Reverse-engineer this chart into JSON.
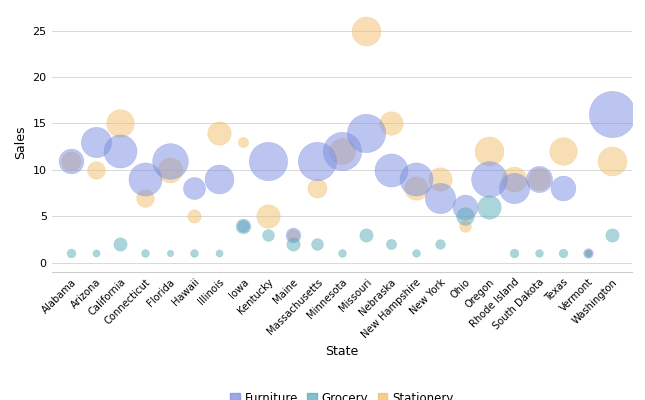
{
  "states": [
    "Alabama",
    "Arizona",
    "California",
    "Connecticut",
    "Florida",
    "Hawaii",
    "Illinois",
    "Iowa",
    "Kentucky",
    "Maine",
    "Massachusetts",
    "Minnesota",
    "Missouri",
    "Nebraska",
    "New Hampshire",
    "New York",
    "Ohio",
    "Oregon",
    "Rhode Island",
    "South Dakota",
    "Texas",
    "Vermont",
    "Washington"
  ],
  "categories": [
    "Furniture",
    "Grocery",
    "Stationery"
  ],
  "colors": {
    "Furniture": "#7b8de0",
    "Grocery": "#5aacb8",
    "Stationery": "#f0be6a"
  },
  "alpha": 0.5,
  "bubble_data": [
    {
      "state": "Alabama",
      "category": "Furniture",
      "sales": 11,
      "size": 80
    },
    {
      "state": "Alabama",
      "category": "Grocery",
      "sales": 1,
      "size": 25
    },
    {
      "state": "Alabama",
      "category": "Stationery",
      "sales": 11,
      "size": 60
    },
    {
      "state": "Arizona",
      "category": "Furniture",
      "sales": 13,
      "size": 100
    },
    {
      "state": "Arizona",
      "category": "Grocery",
      "sales": 1,
      "size": 20
    },
    {
      "state": "Arizona",
      "category": "Stationery",
      "sales": 10,
      "size": 55
    },
    {
      "state": "California",
      "category": "Furniture",
      "sales": 12,
      "size": 110
    },
    {
      "state": "California",
      "category": "Grocery",
      "sales": 2,
      "size": 40
    },
    {
      "state": "California",
      "category": "Stationery",
      "sales": 15,
      "size": 90
    },
    {
      "state": "Connecticut",
      "category": "Furniture",
      "sales": 9,
      "size": 110
    },
    {
      "state": "Connecticut",
      "category": "Grocery",
      "sales": 1,
      "size": 22
    },
    {
      "state": "Connecticut",
      "category": "Stationery",
      "sales": 7,
      "size": 55
    },
    {
      "state": "Florida",
      "category": "Furniture",
      "sales": 11,
      "size": 120
    },
    {
      "state": "Florida",
      "category": "Grocery",
      "sales": 1,
      "size": 18
    },
    {
      "state": "Florida",
      "category": "Stationery",
      "sales": 10,
      "size": 80
    },
    {
      "state": "Hawaii",
      "category": "Furniture",
      "sales": 8,
      "size": 70
    },
    {
      "state": "Hawaii",
      "category": "Grocery",
      "sales": 1,
      "size": 22
    },
    {
      "state": "Hawaii",
      "category": "Stationery",
      "sales": 5,
      "size": 40
    },
    {
      "state": "Illinois",
      "category": "Furniture",
      "sales": 9,
      "size": 95
    },
    {
      "state": "Illinois",
      "category": "Grocery",
      "sales": 1,
      "size": 20
    },
    {
      "state": "Illinois",
      "category": "Stationery",
      "sales": 14,
      "size": 75
    },
    {
      "state": "Iowa",
      "category": "Furniture",
      "sales": 4,
      "size": 35
    },
    {
      "state": "Iowa",
      "category": "Grocery",
      "sales": 4,
      "size": 45
    },
    {
      "state": "Iowa",
      "category": "Stationery",
      "sales": 13,
      "size": 30
    },
    {
      "state": "Kentucky",
      "category": "Furniture",
      "sales": 11,
      "size": 130
    },
    {
      "state": "Kentucky",
      "category": "Grocery",
      "sales": 3,
      "size": 35
    },
    {
      "state": "Kentucky",
      "category": "Stationery",
      "sales": 5,
      "size": 75
    },
    {
      "state": "Maine",
      "category": "Furniture",
      "sales": 3,
      "size": 45
    },
    {
      "state": "Maine",
      "category": "Grocery",
      "sales": 2,
      "size": 40
    },
    {
      "state": "Maine",
      "category": "Stationery",
      "sales": 3,
      "size": 35
    },
    {
      "state": "Massachusetts",
      "category": "Furniture",
      "sales": 11,
      "size": 130
    },
    {
      "state": "Massachusetts",
      "category": "Grocery",
      "sales": 2,
      "size": 35
    },
    {
      "state": "Massachusetts",
      "category": "Stationery",
      "sales": 8,
      "size": 60
    },
    {
      "state": "Minnesota",
      "category": "Furniture",
      "sales": 12,
      "size": 130
    },
    {
      "state": "Minnesota",
      "category": "Grocery",
      "sales": 1,
      "size": 22
    },
    {
      "state": "Minnesota",
      "category": "Stationery",
      "sales": 12,
      "size": 85
    },
    {
      "state": "Missouri",
      "category": "Furniture",
      "sales": 14,
      "size": 130
    },
    {
      "state": "Missouri",
      "category": "Grocery",
      "sales": 3,
      "size": 40
    },
    {
      "state": "Missouri",
      "category": "Stationery",
      "sales": 25,
      "size": 95
    },
    {
      "state": "Nebraska",
      "category": "Furniture",
      "sales": 10,
      "size": 110
    },
    {
      "state": "Nebraska",
      "category": "Grocery",
      "sales": 2,
      "size": 30
    },
    {
      "state": "Nebraska",
      "category": "Stationery",
      "sales": 15,
      "size": 75
    },
    {
      "state": "New Hampshire",
      "category": "Furniture",
      "sales": 9,
      "size": 110
    },
    {
      "state": "New Hampshire",
      "category": "Grocery",
      "sales": 1,
      "size": 22
    },
    {
      "state": "New Hampshire",
      "category": "Stationery",
      "sales": 8,
      "size": 75
    },
    {
      "state": "New York",
      "category": "Furniture",
      "sales": 7,
      "size": 100
    },
    {
      "state": "New York",
      "category": "Grocery",
      "sales": 2,
      "size": 28
    },
    {
      "state": "New York",
      "category": "Stationery",
      "sales": 9,
      "size": 75
    },
    {
      "state": "Ohio",
      "category": "Furniture",
      "sales": 6,
      "size": 80
    },
    {
      "state": "Ohio",
      "category": "Grocery",
      "sales": 5,
      "size": 55
    },
    {
      "state": "Ohio",
      "category": "Stationery",
      "sales": 4,
      "size": 35
    },
    {
      "state": "Oregon",
      "category": "Furniture",
      "sales": 9,
      "size": 120
    },
    {
      "state": "Oregon",
      "category": "Grocery",
      "sales": 6,
      "size": 75
    },
    {
      "state": "Oregon",
      "category": "Stationery",
      "sales": 12,
      "size": 95
    },
    {
      "state": "Rhode Island",
      "category": "Furniture",
      "sales": 8,
      "size": 100
    },
    {
      "state": "Rhode Island",
      "category": "Grocery",
      "sales": 1,
      "size": 25
    },
    {
      "state": "Rhode Island",
      "category": "Stationery",
      "sales": 9,
      "size": 80
    },
    {
      "state": "South Dakota",
      "category": "Furniture",
      "sales": 9,
      "size": 85
    },
    {
      "state": "South Dakota",
      "category": "Grocery",
      "sales": 1,
      "size": 22
    },
    {
      "state": "South Dakota",
      "category": "Stationery",
      "sales": 9,
      "size": 70
    },
    {
      "state": "Texas",
      "category": "Furniture",
      "sales": 8,
      "size": 80
    },
    {
      "state": "Texas",
      "category": "Grocery",
      "sales": 1,
      "size": 25
    },
    {
      "state": "Texas",
      "category": "Stationery",
      "sales": 12,
      "size": 90
    },
    {
      "state": "Vermont",
      "category": "Furniture",
      "sales": 1,
      "size": 28
    },
    {
      "state": "Vermont",
      "category": "Grocery",
      "sales": 1,
      "size": 20
    },
    {
      "state": "Vermont",
      "category": "Stationery",
      "sales": 1,
      "size": 18
    },
    {
      "state": "Washington",
      "category": "Furniture",
      "sales": 16,
      "size": 160
    },
    {
      "state": "Washington",
      "category": "Grocery",
      "sales": 3,
      "size": 40
    },
    {
      "state": "Washington",
      "category": "Stationery",
      "sales": 11,
      "size": 95
    }
  ],
  "xlabel": "State",
  "ylabel": "Sales",
  "ylim": [
    -1,
    27
  ],
  "yticks": [
    0,
    5,
    10,
    15,
    20,
    25
  ],
  "bg_color": "#ffffff",
  "grid_color": "#d8d8d8"
}
